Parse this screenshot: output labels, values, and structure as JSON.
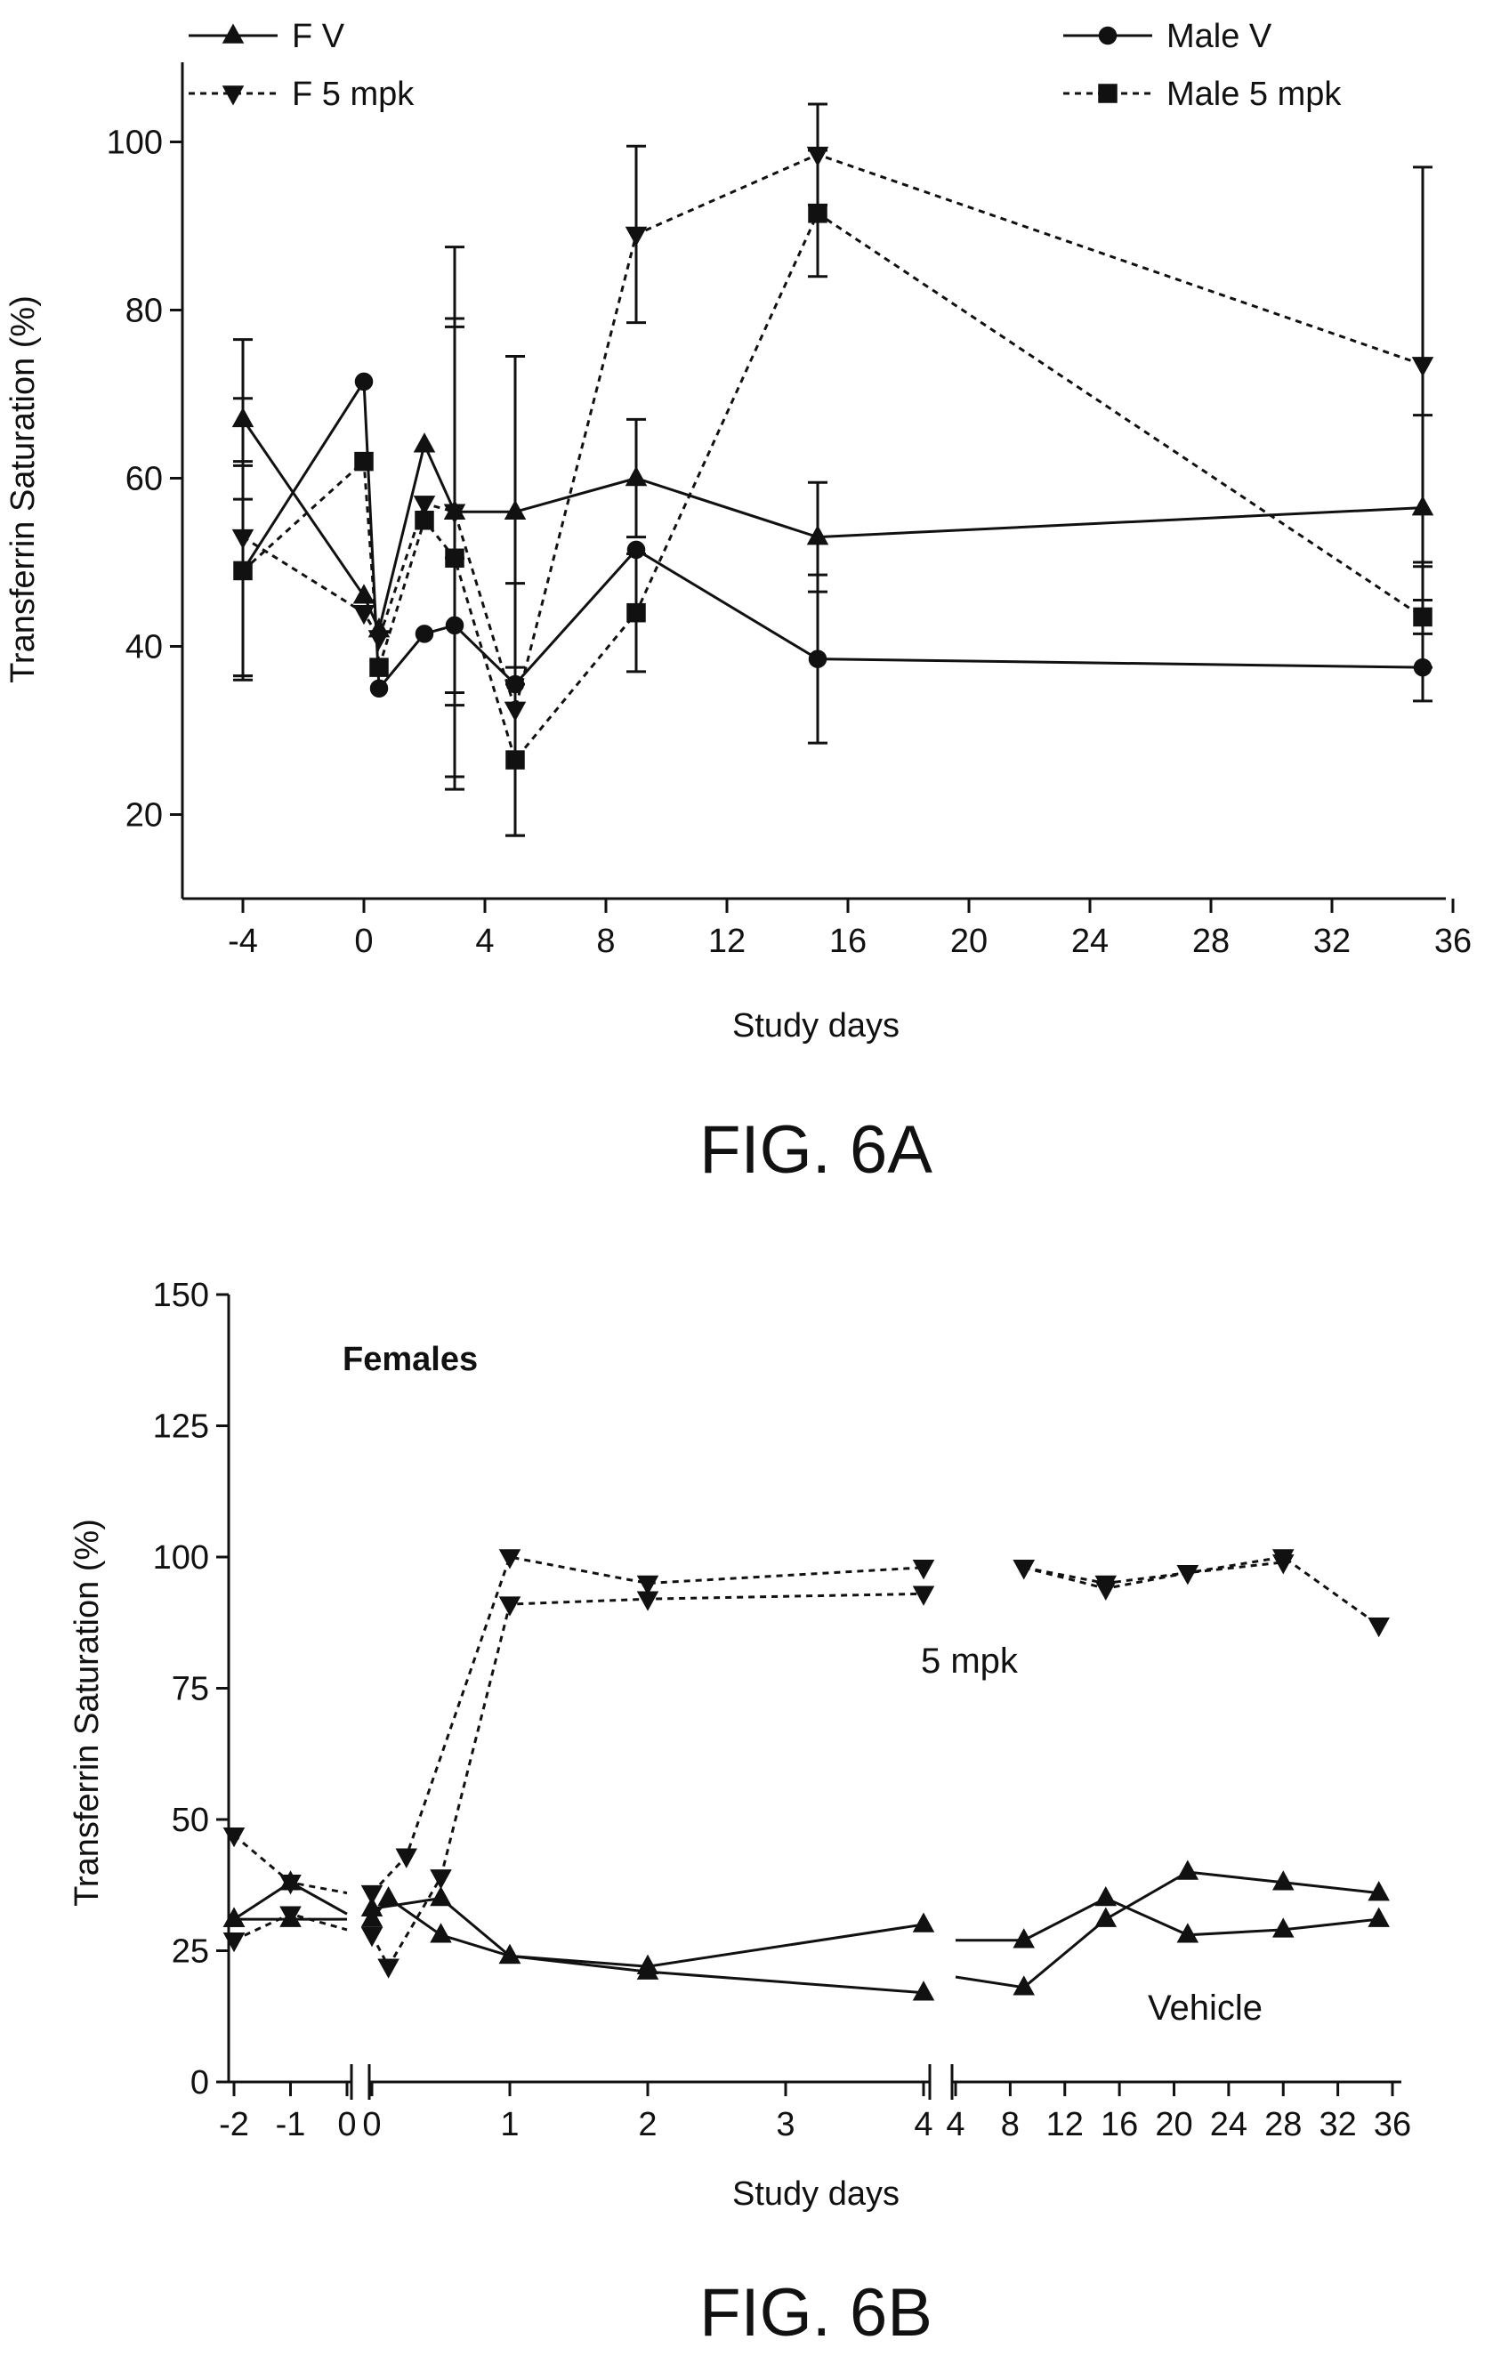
{
  "chart_data": [
    {
      "type": "line",
      "figure_label": "FIG. 6A",
      "xlabel": "Study days",
      "ylabel": "Transferrin Saturation (%)",
      "xticks": [
        -4,
        0,
        4,
        8,
        12,
        16,
        20,
        24,
        28,
        32,
        36
      ],
      "yticks": [
        20,
        40,
        60,
        80,
        100
      ],
      "ylim": [
        10,
        110
      ],
      "legend": [
        {
          "name": "F V",
          "marker": "triangle-up",
          "style": "solid"
        },
        {
          "name": "F 5 mpk",
          "marker": "triangle-down",
          "style": "dashed"
        },
        {
          "name": "Male V",
          "marker": "circle",
          "style": "solid"
        },
        {
          "name": "Male 5 mpk",
          "marker": "square",
          "style": "dashed"
        }
      ],
      "series": [
        {
          "name": "F V",
          "marker": "triangle-up",
          "style": "solid",
          "points": [
            {
              "x": -4,
              "y": 67,
              "err": 9.5
            },
            {
              "x": 0,
              "y": 46
            },
            {
              "x": 0.5,
              "y": 42
            },
            {
              "x": 2,
              "y": 64
            },
            {
              "x": 3,
              "y": 56,
              "err": 31.5
            },
            {
              "x": 5,
              "y": 56,
              "err": 18.5
            },
            {
              "x": 9,
              "y": 60,
              "err": 7
            },
            {
              "x": 15,
              "y": 53,
              "err": 6.5
            },
            {
              "x": 35,
              "y": 56.5,
              "err": 11
            }
          ]
        },
        {
          "name": "F 5 mpk",
          "marker": "triangle-down",
          "style": "dashed",
          "points": [
            {
              "x": -4,
              "y": 53,
              "err": 16.5
            },
            {
              "x": 0,
              "y": 44
            },
            {
              "x": 0.5,
              "y": 41
            },
            {
              "x": 2,
              "y": 57
            },
            {
              "x": 3,
              "y": 56,
              "err": 23
            },
            {
              "x": 5,
              "y": 32.5,
              "err": 15
            },
            {
              "x": 9,
              "y": 89,
              "err": 10.5
            },
            {
              "x": 15,
              "y": 98.5,
              "err": 6
            },
            {
              "x": 35,
              "y": 73.5,
              "err": 23.5
            }
          ]
        },
        {
          "name": "Male V",
          "marker": "circle",
          "style": "solid",
          "points": [
            {
              "x": -4,
              "y": 49,
              "err": 12.5
            },
            {
              "x": 0,
              "y": 71.5
            },
            {
              "x": 0.5,
              "y": 35
            },
            {
              "x": 2,
              "y": 41.5
            },
            {
              "x": 3,
              "y": 42.5,
              "err": 8
            },
            {
              "x": 5,
              "y": 35.5
            },
            {
              "x": 9,
              "y": 51.5
            },
            {
              "x": 15,
              "y": 38.5,
              "err": 10
            },
            {
              "x": 35,
              "y": 37.5,
              "err": 4
            }
          ]
        },
        {
          "name": "Male 5 mpk",
          "marker": "square",
          "style": "dashed",
          "points": [
            {
              "x": -4,
              "y": 49,
              "err": 13
            },
            {
              "x": 0,
              "y": 62
            },
            {
              "x": 0.5,
              "y": 37.5
            },
            {
              "x": 2,
              "y": 55
            },
            {
              "x": 3,
              "y": 50.5,
              "err": 27.5
            },
            {
              "x": 5,
              "y": 26.5,
              "err": 9
            },
            {
              "x": 9,
              "y": 44,
              "err": 7
            },
            {
              "x": 15,
              "y": 91.5,
              "err": 7.5
            },
            {
              "x": 35,
              "y": 43.5,
              "err": 6
            }
          ]
        }
      ]
    },
    {
      "type": "line",
      "figure_label": "FIG. 6B",
      "xlabel": "Study days",
      "ylabel": "Transferrin Saturation (%)",
      "panel_title": "Females",
      "annotations": [
        "5 mpk",
        "Vehicle"
      ],
      "yticks": [
        0,
        25,
        50,
        75,
        100,
        125,
        150
      ],
      "ylim": [
        0,
        150
      ],
      "segments": [
        {
          "ticks": [
            -2,
            -1,
            0
          ],
          "range": [
            -2,
            0
          ]
        },
        {
          "ticks": [
            0,
            1,
            2,
            3,
            4
          ],
          "range": [
            0,
            4
          ]
        },
        {
          "ticks": [
            4,
            8,
            12,
            16,
            20,
            24,
            28,
            32,
            36
          ],
          "range": [
            4,
            36
          ]
        }
      ],
      "series": [
        {
          "name": "5 mpk (a)",
          "marker": "triangle-down",
          "style": "dashed",
          "groups": [
            [
              {
                "x": -2,
                "y": 47
              },
              {
                "x": -1,
                "y": 38
              },
              {
                "x": 0,
                "y": 36
              }
            ],
            [
              {
                "x": 0,
                "y": 36
              },
              {
                "x": 0.25,
                "y": 43
              },
              {
                "x": 1,
                "y": 100
              },
              {
                "x": 2,
                "y": 95
              },
              {
                "x": 4,
                "y": 98
              }
            ],
            [
              {
                "x": 9,
                "y": 98
              },
              {
                "x": 15,
                "y": 95
              },
              {
                "x": 21,
                "y": 97
              },
              {
                "x": 28,
                "y": 100
              },
              {
                "x": 35,
                "y": 87
              }
            ]
          ]
        },
        {
          "name": "5 mpk (b)",
          "marker": "triangle-down",
          "style": "dashed",
          "groups": [
            [
              {
                "x": -2,
                "y": 27
              },
              {
                "x": -1,
                "y": 32
              },
              {
                "x": 0,
                "y": 29
              }
            ],
            [
              {
                "x": 0,
                "y": 28
              },
              {
                "x": 0.12,
                "y": 22
              },
              {
                "x": 0.5,
                "y": 39
              },
              {
                "x": 1,
                "y": 91
              },
              {
                "x": 2,
                "y": 92
              },
              {
                "x": 4,
                "y": 93
              }
            ],
            [
              {
                "x": 9,
                "y": 98
              },
              {
                "x": 15,
                "y": 94
              },
              {
                "x": 21,
                "y": 97
              },
              {
                "x": 28,
                "y": 99
              }
            ]
          ]
        },
        {
          "name": "Vehicle (a)",
          "marker": "triangle-up",
          "style": "solid",
          "groups": [
            [
              {
                "x": -2,
                "y": 31
              },
              {
                "x": -1,
                "y": 38
              },
              {
                "x": 0,
                "y": 32
              }
            ],
            [
              {
                "x": 0,
                "y": 33
              },
              {
                "x": 0.5,
                "y": 35
              },
              {
                "x": 1,
                "y": 24
              },
              {
                "x": 2,
                "y": 22
              },
              {
                "x": 4,
                "y": 30
              }
            ],
            [
              {
                "x": 4,
                "y": 20
              },
              {
                "x": 9,
                "y": 18
              },
              {
                "x": 15,
                "y": 31
              },
              {
                "x": 21,
                "y": 40
              },
              {
                "x": 28,
                "y": 38
              },
              {
                "x": 35,
                "y": 36
              }
            ]
          ]
        },
        {
          "name": "Vehicle (b)",
          "marker": "triangle-up",
          "style": "solid",
          "groups": [
            [
              {
                "x": -2,
                "y": 31
              },
              {
                "x": -1,
                "y": 31
              },
              {
                "x": 0,
                "y": 31
              }
            ],
            [
              {
                "x": 0,
                "y": 31
              },
              {
                "x": 0.12,
                "y": 35
              },
              {
                "x": 0.5,
                "y": 28
              },
              {
                "x": 1,
                "y": 24
              },
              {
                "x": 2,
                "y": 21
              },
              {
                "x": 4,
                "y": 17
              }
            ],
            [
              {
                "x": 4,
                "y": 27
              },
              {
                "x": 9,
                "y": 27
              },
              {
                "x": 15,
                "y": 35
              },
              {
                "x": 21,
                "y": 28
              },
              {
                "x": 28,
                "y": 29
              },
              {
                "x": 35,
                "y": 31
              }
            ]
          ]
        }
      ]
    }
  ]
}
